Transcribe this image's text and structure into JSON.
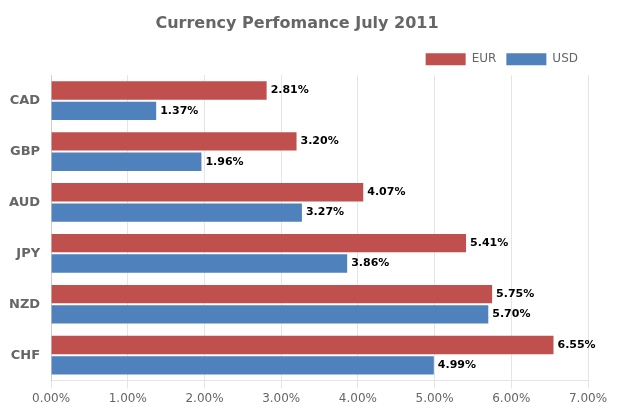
{
  "chart_data": {
    "type": "bar",
    "orientation": "horizontal",
    "title": "Currency Perfomance July 2011",
    "categories": [
      "CHF",
      "NZD",
      "JPY",
      "AUD",
      "GBP",
      "CAD"
    ],
    "series": [
      {
        "name": "EUR",
        "color": "#C0504D",
        "values": [
          6.55,
          5.75,
          5.41,
          4.07,
          3.2,
          2.81
        ],
        "value_labels": [
          "6.55%",
          "5.75%",
          "5.41%",
          "4.07%",
          "3.20%",
          "2.81%"
        ]
      },
      {
        "name": "USD",
        "color": "#4F81BD",
        "values": [
          4.99,
          5.7,
          3.86,
          3.27,
          1.96,
          1.37
        ],
        "value_labels": [
          "4.99%",
          "5.70%",
          "3.86%",
          "3.27%",
          "1.96%",
          "1.37%"
        ]
      }
    ],
    "xlim": [
      0,
      7.0
    ],
    "xticks": [
      {
        "value": 0,
        "label": "0.00%"
      },
      {
        "value": 1,
        "label": "1.00%"
      },
      {
        "value": 2,
        "label": "2.00%"
      },
      {
        "value": 3,
        "label": "3.00%"
      },
      {
        "value": 4,
        "label": "4.00%"
      },
      {
        "value": 5,
        "label": "5.00%"
      },
      {
        "value": 6,
        "label": "6.00%"
      },
      {
        "value": 7,
        "label": "7.00%"
      }
    ],
    "grid": true,
    "legend": "upper right",
    "data_labels": true
  }
}
